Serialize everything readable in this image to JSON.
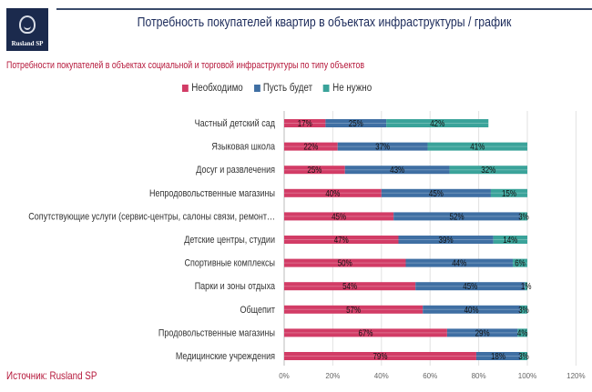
{
  "header": {
    "logo_text": "Rusland SP",
    "title": "Потребность покупателей квартир в объектах инфраструктуры / график"
  },
  "source": "Источник: Rusland SP",
  "colors": {
    "necessary": "#d23c66",
    "maybe": "#3f6fa3",
    "not_needed": "#3aa39a",
    "title": "#1b2a5a",
    "accent": "#b5173a"
  },
  "chart_data": {
    "type": "bar",
    "orientation": "horizontal",
    "stacked": true,
    "title": "Потребности покупателей в объектах социальной и торговой инфраструктуры по типу объектов",
    "xlabel": "",
    "ylabel": "",
    "xlim": [
      0,
      120
    ],
    "xticks": [
      "0%",
      "20%",
      "40%",
      "60%",
      "80%",
      "100%",
      "120%"
    ],
    "grid": true,
    "legend_position": "top",
    "categories": [
      "Частный детский сад",
      "Языковая школа",
      "Досуг и развлечения",
      "Непродовольственные магазины",
      "Сопутствующие услуги (сервис-центры, салоны связи, ремонт…",
      "Детские центры, студии",
      "Спортивные комплексы",
      "Парки и зоны отдыха",
      "Общепит",
      "Продовольственные магазины",
      "Медицинские учреждения"
    ],
    "series": [
      {
        "name": "Необходимо",
        "values": [
          17,
          22,
          25,
          40,
          45,
          47,
          50,
          54,
          57,
          67,
          79
        ],
        "labels": [
          "17%",
          "22%",
          "25%",
          "40%",
          "45%",
          "47%",
          "50%",
          "54%",
          "57%",
          "67%",
          "79%"
        ]
      },
      {
        "name": "Пусть будет",
        "values": [
          25,
          37,
          43,
          45,
          52,
          39,
          44,
          45,
          40,
          29,
          18
        ],
        "labels": [
          "25%",
          "37%",
          "43%",
          "45%",
          "52%",
          "39%",
          "44%",
          "45%",
          "40%",
          "29%",
          "18%"
        ]
      },
      {
        "name": "Не нужно",
        "values": [
          42,
          41,
          32,
          15,
          3,
          14,
          6,
          1,
          3,
          4,
          3
        ],
        "labels": [
          "42%",
          "41%",
          "32%",
          "15%",
          "3%",
          "14%",
          "6%",
          "1%",
          "3%",
          "4%",
          "3%"
        ]
      }
    ]
  }
}
